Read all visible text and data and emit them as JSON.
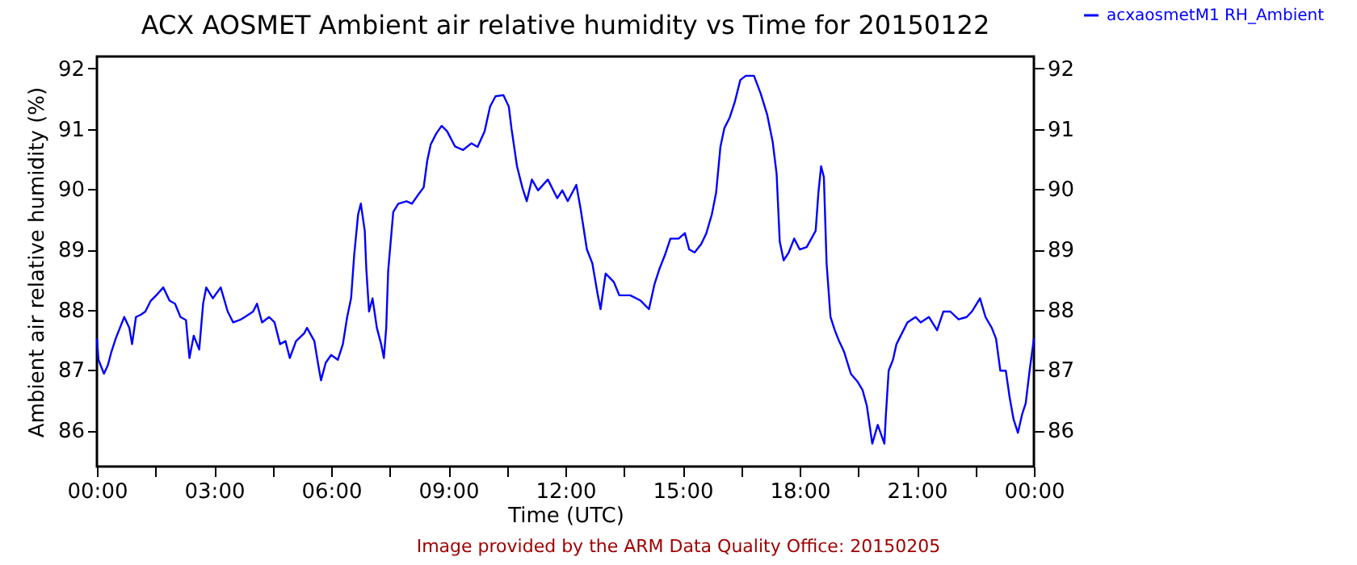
{
  "chart_data": {
    "type": "line",
    "title": "ACX AOSMET Ambient air relative humidity vs Time for 20150122",
    "xlabel": "Time (UTC)",
    "ylabel": "Ambient air relative humidity (%)",
    "x": [
      0,
      0.04,
      0.18,
      0.28,
      0.37,
      0.48,
      0.59,
      0.7,
      0.83,
      0.9,
      1.0,
      1.13,
      1.24,
      1.38,
      1.52,
      1.7,
      1.86,
      2.0,
      2.14,
      2.28,
      2.37,
      2.48,
      2.62,
      2.72,
      2.8,
      2.97,
      3.17,
      3.35,
      3.49,
      3.66,
      3.79,
      4.0,
      4.1,
      4.23,
      4.41,
      4.55,
      4.69,
      4.83,
      4.94,
      5.1,
      5.31,
      5.38,
      5.57,
      5.66,
      5.74,
      5.86,
      6.0,
      6.17,
      6.3,
      6.41,
      6.51,
      6.59,
      6.69,
      6.76,
      6.86,
      6.9,
      6.97,
      7.06,
      7.17,
      7.28,
      7.35,
      7.41,
      7.46,
      7.59,
      7.72,
      7.93,
      8.07,
      8.21,
      8.37,
      8.46,
      8.55,
      8.69,
      8.83,
      8.97,
      9.17,
      9.38,
      9.59,
      9.75,
      9.93,
      10.07,
      10.21,
      10.41,
      10.55,
      10.62,
      10.76,
      10.9,
      11.01,
      11.14,
      11.3,
      11.55,
      11.79,
      11.92,
      12.06,
      12.28,
      12.39,
      12.55,
      12.69,
      12.83,
      12.9,
      13.03,
      13.24,
      13.38,
      13.66,
      13.93,
      14.14,
      14.28,
      14.41,
      14.55,
      14.69,
      14.9,
      15.06,
      15.17,
      15.31,
      15.48,
      15.61,
      15.75,
      15.86,
      15.97,
      16.07,
      16.21,
      16.34,
      16.48,
      16.62,
      16.83,
      17.0,
      17.17,
      17.31,
      17.41,
      17.49,
      17.59,
      17.72,
      17.86,
      18.0,
      18.18,
      18.3,
      18.41,
      18.48,
      18.55,
      18.62,
      18.69,
      18.79,
      18.9,
      19.01,
      19.14,
      19.31,
      19.48,
      19.61,
      19.72,
      19.86,
      20.0,
      20.17,
      20.21,
      20.28,
      20.39,
      20.48,
      20.62,
      20.76,
      20.97,
      21.1,
      21.31,
      21.52,
      21.68,
      21.86,
      22.07,
      22.28,
      22.41,
      22.62,
      22.76,
      22.92,
      23.03,
      23.14,
      23.28,
      23.38,
      23.48,
      23.59,
      23.7,
      23.79,
      23.89,
      24.0
    ],
    "series": [
      {
        "name": "acxaosmetM1 RH_Ambient",
        "color": "#0000ff",
        "values": [
          87.52,
          87.17,
          86.94,
          87.08,
          87.3,
          87.52,
          87.7,
          87.88,
          87.7,
          87.43,
          87.88,
          87.92,
          87.97,
          88.15,
          88.24,
          88.37,
          88.15,
          88.1,
          87.88,
          87.83,
          87.2,
          87.57,
          87.34,
          88.1,
          88.37,
          88.19,
          88.37,
          87.97,
          87.79,
          87.83,
          87.88,
          87.97,
          88.1,
          87.79,
          87.88,
          87.79,
          87.43,
          87.48,
          87.2,
          87.48,
          87.61,
          87.7,
          87.48,
          87.12,
          86.83,
          87.12,
          87.25,
          87.17,
          87.43,
          87.88,
          88.19,
          88.91,
          89.58,
          89.76,
          89.31,
          88.68,
          87.97,
          88.19,
          87.7,
          87.43,
          87.2,
          87.7,
          88.64,
          89.62,
          89.76,
          89.8,
          89.76,
          89.89,
          90.03,
          90.47,
          90.74,
          90.92,
          91.05,
          90.96,
          90.71,
          90.65,
          90.76,
          90.7,
          90.96,
          91.37,
          91.54,
          91.56,
          91.37,
          91.0,
          90.38,
          90.02,
          89.8,
          90.16,
          89.98,
          90.16,
          89.85,
          89.98,
          89.8,
          90.07,
          89.67,
          89.0,
          88.77,
          88.24,
          88.01,
          88.6,
          88.46,
          88.24,
          88.24,
          88.15,
          88.01,
          88.42,
          88.68,
          88.91,
          89.18,
          89.18,
          89.27,
          89.0,
          88.95,
          89.09,
          89.27,
          89.58,
          89.94,
          90.7,
          91.01,
          91.19,
          91.45,
          91.81,
          91.88,
          91.88,
          91.59,
          91.23,
          90.78,
          90.25,
          89.13,
          88.82,
          88.95,
          89.18,
          89.0,
          89.04,
          89.18,
          89.31,
          89.94,
          90.38,
          90.2,
          88.77,
          87.88,
          87.66,
          87.48,
          87.3,
          86.94,
          86.81,
          86.67,
          86.41,
          85.78,
          86.09,
          85.78,
          86.27,
          86.99,
          87.17,
          87.43,
          87.61,
          87.79,
          87.88,
          87.79,
          87.88,
          87.66,
          87.97,
          87.97,
          87.84,
          87.88,
          87.97,
          88.19,
          87.88,
          87.7,
          87.52,
          86.99,
          86.99,
          86.54,
          86.18,
          85.96,
          86.27,
          86.45,
          86.99,
          87.52
        ]
      }
    ],
    "xlim": [
      0,
      24
    ],
    "xticks": [
      {
        "value": 0,
        "label": "00:00"
      },
      {
        "value": 1.5,
        "label": null
      },
      {
        "value": 3,
        "label": "03:00"
      },
      {
        "value": 4.5,
        "label": null
      },
      {
        "value": 6,
        "label": "06:00"
      },
      {
        "value": 7.5,
        "label": null
      },
      {
        "value": 9,
        "label": "09:00"
      },
      {
        "value": 10.5,
        "label": null
      },
      {
        "value": 12,
        "label": "12:00"
      },
      {
        "value": 13.5,
        "label": null
      },
      {
        "value": 15,
        "label": "15:00"
      },
      {
        "value": 16.5,
        "label": null
      },
      {
        "value": 18,
        "label": "18:00"
      },
      {
        "value": 19.5,
        "label": null
      },
      {
        "value": 21,
        "label": "21:00"
      },
      {
        "value": 22.5,
        "label": null
      },
      {
        "value": 24,
        "label": "00:00"
      }
    ],
    "ylim": [
      85.4,
      92.2
    ],
    "yticks": [
      86,
      87,
      88,
      89,
      90,
      91,
      92
    ],
    "y2lim": [
      85.4,
      92.2
    ],
    "y2ticks": [
      86,
      87,
      88,
      89,
      90,
      91,
      92
    ],
    "legend": "top right",
    "grid": false,
    "marker": "none",
    "line_style": "solid",
    "annotations": [
      "Image provided by the ARM Data Quality Office: 20150205"
    ]
  }
}
